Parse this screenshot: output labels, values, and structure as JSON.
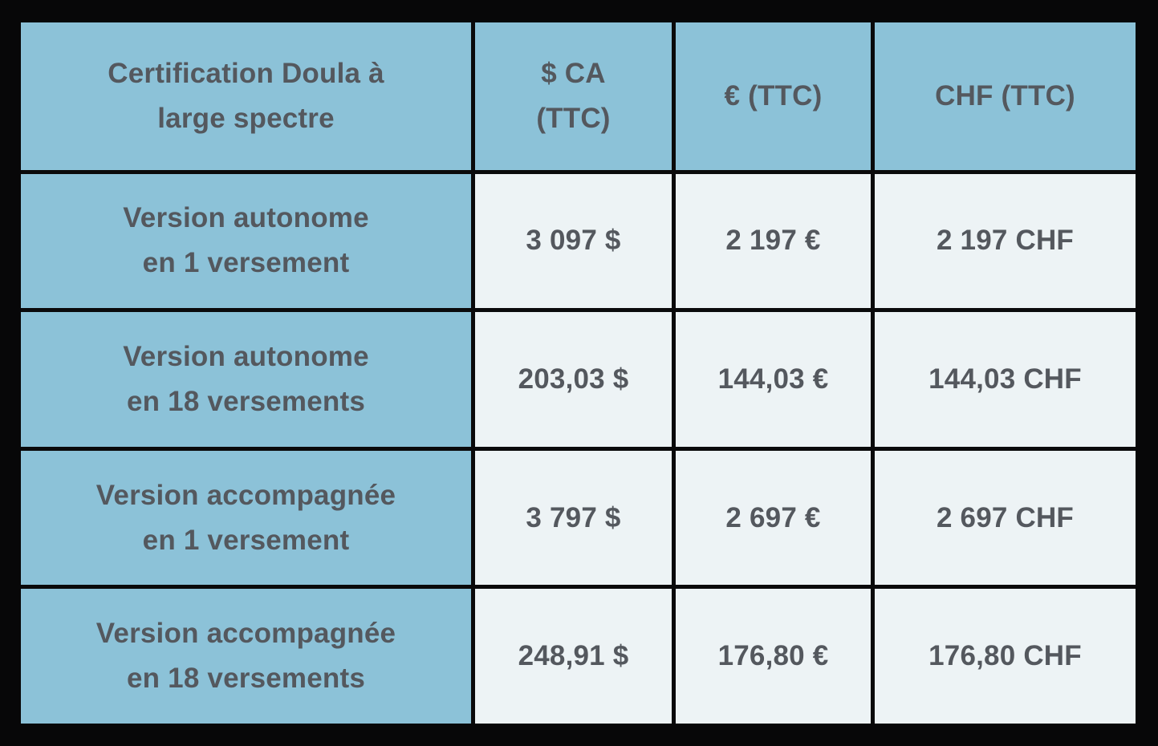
{
  "colors": {
    "header_blue": "#8cc2d8",
    "cell_light": "#edf3f5",
    "text_dark": "#54585e",
    "grid_black": "#0a0a0b",
    "background": "#070708"
  },
  "chart_data": {
    "type": "table",
    "title": "Certification Doula à large spectre",
    "columns": [
      "Certification Doula à large spectre",
      "$ CA (TTC)",
      "€ (TTC)",
      "CHF (TTC)"
    ],
    "rows": [
      {
        "label": "Version autonome en 1 versement",
        "cad_ttc": "3 097 $",
        "eur_ttc": "2 197 €",
        "chf_ttc": "2 197 CHF"
      },
      {
        "label": "Version autonome en 18 versements",
        "cad_ttc": "203,03 $",
        "eur_ttc": "144,03 €",
        "chf_ttc": "144,03 CHF"
      },
      {
        "label": "Version accompagnée en 1 versement",
        "cad_ttc": "3 797 $",
        "eur_ttc": "2 697 €",
        "chf_ttc": "2 697 CHF"
      },
      {
        "label": "Version accompagnée en 18 versements",
        "cad_ttc": "248,91 $",
        "eur_ttc": "176,80 €",
        "chf_ttc": "176,80 CHF"
      }
    ]
  },
  "table": {
    "header": {
      "title_line1": "Certification Doula à",
      "title_line2": "large spectre",
      "cad_line1": "$ CA",
      "cad_line2": "(TTC)",
      "eur": "€ (TTC)",
      "chf": "CHF (TTC)"
    },
    "rows": [
      {
        "label_line1": "Version autonome",
        "label_line2": "en 1 versement",
        "cad": "3 097 $",
        "eur": "2 197 €",
        "chf": "2 197 CHF"
      },
      {
        "label_line1": "Version autonome",
        "label_line2": "en 18 versements",
        "cad": "203,03 $",
        "eur": "144,03 €",
        "chf": "144,03 CHF"
      },
      {
        "label_line1": "Version accompagnée",
        "label_line2": "en 1 versement",
        "cad": "3 797 $",
        "eur": "2 697 €",
        "chf": "2 697 CHF"
      },
      {
        "label_line1": "Version accompagnée",
        "label_line2": "en 18 versements",
        "cad": "248,91 $",
        "eur": "176,80 €",
        "chf": "176,80 CHF"
      }
    ]
  }
}
